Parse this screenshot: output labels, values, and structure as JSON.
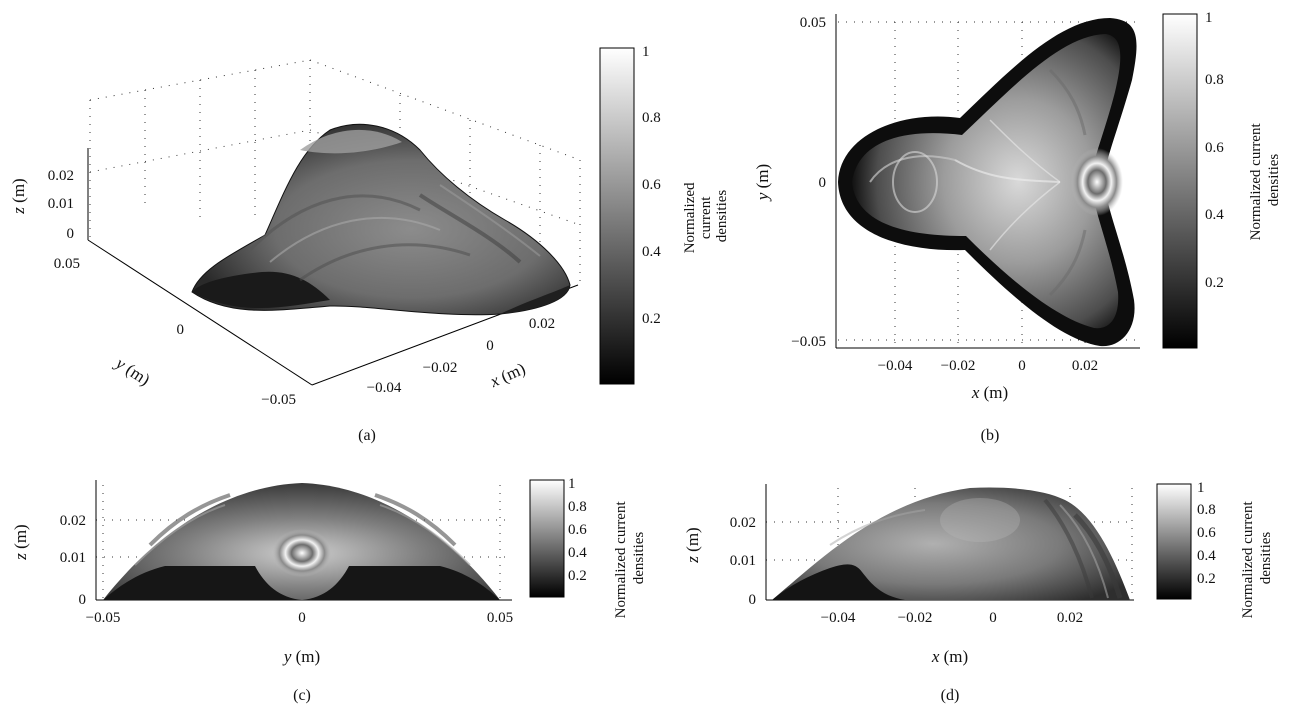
{
  "chart_data": [
    {
      "panel": "(a)",
      "type": "surface",
      "caption": "(a)",
      "xlabel_var": "x",
      "xlabel_unit": "(m)",
      "ylabel_var": "y",
      "ylabel_unit": "(m)",
      "zlabel_var": "z",
      "zlabel_unit": "(m)",
      "x_ticks": [
        "−0.04",
        "−0.02",
        "0",
        "0.02"
      ],
      "y_ticks": [
        "0.05",
        "0",
        "−0.05"
      ],
      "z_ticks": [
        "0.02",
        "0.01",
        "0"
      ],
      "xlim": [
        -0.058,
        0.036
      ],
      "ylim": [
        -0.052,
        0.052
      ],
      "zlim": [
        0,
        0.03
      ],
      "grid": true,
      "colormap": "gray",
      "colorbar": {
        "label_line1": "Normalized",
        "label_line2": "current",
        "label_line3": "densities",
        "ticks": [
          "1",
          "0.8",
          "0.6",
          "0.4",
          "0.2"
        ],
        "range": [
          0,
          1
        ]
      },
      "surface": {
        "outline": "three-lobed",
        "peak_z": 0.029
      }
    },
    {
      "panel": "(b)",
      "type": "heatmap",
      "caption": "(b)",
      "xlabel_var": "x",
      "xlabel_unit": "(m)",
      "ylabel_var": "y",
      "ylabel_unit": "(m)",
      "x_ticks": [
        "−0.04",
        "−0.02",
        "0",
        "0.02"
      ],
      "y_ticks": [
        "0.05",
        "0",
        "−0.05"
      ],
      "xlim": [
        -0.058,
        0.036
      ],
      "ylim": [
        -0.052,
        0.052
      ],
      "grid": true,
      "colormap": "gray",
      "colorbar": {
        "label_line1": "Normalized current",
        "label_line2": "densities",
        "ticks": [
          "1",
          "0.8",
          "0.6",
          "0.4",
          "0.2"
        ],
        "range": [
          0,
          1
        ]
      },
      "hotspot": {
        "x": 0.023,
        "y": 0.0,
        "value": 1.0
      }
    },
    {
      "panel": "(c)",
      "type": "heatmap",
      "caption": "(c)",
      "xlabel_var": "y",
      "xlabel_unit": "(m)",
      "ylabel_var": "z",
      "ylabel_unit": "(m)",
      "x_ticks": [
        "−0.05",
        "0",
        "0.05"
      ],
      "y_ticks": [
        "0.02",
        "0.01",
        "0"
      ],
      "xlim": [
        -0.052,
        0.052
      ],
      "ylim": [
        0,
        0.03
      ],
      "grid": true,
      "colormap": "gray",
      "colorbar": {
        "label_line1": "Normalized current",
        "label_line2": "densities",
        "ticks": [
          "1",
          "0.8",
          "0.6",
          "0.4",
          "0.2"
        ],
        "range": [
          0,
          1
        ]
      },
      "profile": {
        "peak_z": 0.029,
        "half_width": 0.05
      }
    },
    {
      "panel": "(d)",
      "type": "heatmap",
      "caption": "(d)",
      "xlabel_var": "x",
      "xlabel_unit": "(m)",
      "ylabel_var": "z",
      "ylabel_unit": "(m)",
      "x_ticks": [
        "−0.04",
        "−0.02",
        "0",
        "0.02"
      ],
      "y_ticks": [
        "0.02",
        "0.01",
        "0"
      ],
      "xlim": [
        -0.058,
        0.036
      ],
      "ylim": [
        0,
        0.03
      ],
      "grid": true,
      "colormap": "gray",
      "colorbar": {
        "label_line1": "Normalized current",
        "label_line2": "densities",
        "ticks": [
          "1",
          "0.8",
          "0.6",
          "0.4",
          "0.2"
        ],
        "range": [
          0,
          1
        ]
      },
      "profile": {
        "peak_x": -0.005,
        "peak_z": 0.029,
        "x_start": -0.055,
        "x_end": 0.036
      }
    }
  ]
}
